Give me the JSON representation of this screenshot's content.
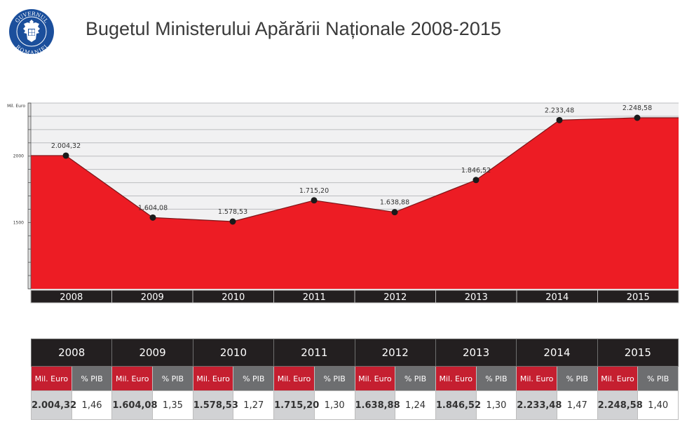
{
  "header": {
    "title": "Bugetul Ministerului Apărării Naționale 2008-2015",
    "logo": {
      "icon": "government-of-romania-seal-icon",
      "text_top": "GUVERNUL",
      "text_bottom": "ROMANIEI"
    }
  },
  "colors": {
    "area_fill": "#ed1c24",
    "line": "#7a1518",
    "marker": "#1a1a1a",
    "plot_bg": "#f1f1f2",
    "gridline": "#bcbec0",
    "year_bar": "#231f20",
    "table_red": "#c51f30",
    "table_grey": "#6d6e70",
    "table_light": "#d1d2d4",
    "logo_blue": "#1b4f9c"
  },
  "chart_data": {
    "type": "area",
    "title": "Bugetul Ministerului Apărării Naționale 2008-2015",
    "xlabel": "",
    "ylabel": "Mil. Euro",
    "categories": [
      "2008",
      "2009",
      "2010",
      "2011",
      "2012",
      "2013",
      "2014",
      "2015"
    ],
    "values": [
      2004.32,
      1604.08,
      1578.53,
      1715.2,
      1638.88,
      1846.52,
      2233.48,
      2248.58
    ],
    "data_labels": [
      "2.004,32",
      "1.604,08",
      "1.578,53",
      "1.715,20",
      "1.638,88",
      "1.846,52",
      "2.233,48",
      "2.248,58"
    ],
    "ylim": [
      1000,
      2400
    ],
    "yticks": [
      1000,
      1100,
      1200,
      1300,
      1400,
      1500,
      1600,
      1700,
      1800,
      1900,
      2000,
      2100,
      2200,
      2300,
      2400
    ],
    "ytick_labels": [
      {
        "value": 2000,
        "label": "2000"
      },
      {
        "value": 1500,
        "label": "1500"
      }
    ],
    "grid": true,
    "legend": "none"
  },
  "table": {
    "sub_headers": {
      "value": "Mil. Euro",
      "pct": "% PIB"
    },
    "rows": [
      {
        "year": "2008",
        "value": "2.004,32",
        "pct": "1,46"
      },
      {
        "year": "2009",
        "value": "1.604,08",
        "pct": "1,35"
      },
      {
        "year": "2010",
        "value": "1.578,53",
        "pct": "1,27"
      },
      {
        "year": "2011",
        "value": "1.715,20",
        "pct": "1,30"
      },
      {
        "year": "2012",
        "value": "1.638,88",
        "pct": "1,24"
      },
      {
        "year": "2013",
        "value": "1.846,52",
        "pct": "1,30"
      },
      {
        "year": "2014",
        "value": "2.233,48",
        "pct": "1,47"
      },
      {
        "year": "2015",
        "value": "2.248,58",
        "pct": "1,40"
      }
    ]
  }
}
